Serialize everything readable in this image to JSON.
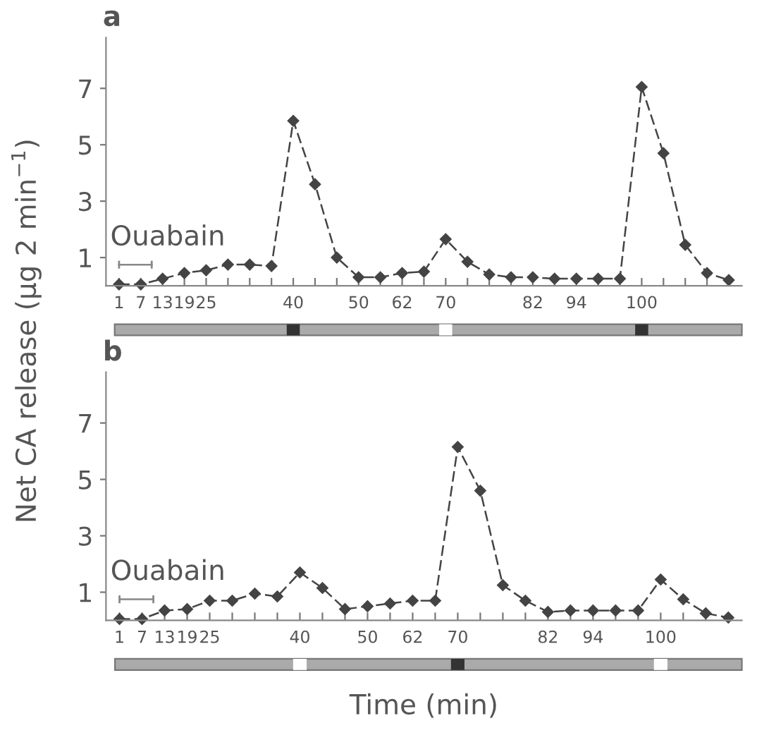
{
  "chart_data": [
    {
      "type": "line",
      "title": "a",
      "ylabel": "Net CA release (μg 2 min$^{−1}$)",
      "annotations": [
        "Ouabain"
      ],
      "categories": [
        "1",
        "7",
        "13",
        "19",
        "25",
        null,
        null,
        null,
        "40",
        null,
        null,
        "50",
        null,
        "62",
        null,
        "70",
        null,
        null,
        null,
        "82",
        null,
        "94",
        null,
        null,
        "100",
        null,
        null,
        null,
        null
      ],
      "series": [
        {
          "color": "#444444",
          "values": [
            0.05,
            0.05,
            0.25,
            0.45,
            0.55,
            0.75,
            0.75,
            0.7,
            5.85,
            3.6,
            1.0,
            0.3,
            0.3,
            0.45,
            0.5,
            1.65,
            0.85,
            0.4,
            0.3,
            0.3,
            0.25,
            0.25,
            0.25,
            0.25,
            7.05,
            4.7,
            1.45,
            0.45,
            0.2
          ]
        }
      ],
      "ylim": [
        0,
        8.8
      ],
      "yticks": [
        1,
        3,
        5,
        7
      ],
      "marker": "diamond",
      "line_style": "dashed",
      "grid": false,
      "legend": false
    },
    {
      "type": "line",
      "title": "b",
      "xlabel": "Time (min)",
      "annotations": [
        "Ouabain"
      ],
      "categories": [
        "1",
        "7",
        "13",
        "19",
        "25",
        null,
        null,
        null,
        "40",
        null,
        null,
        "50",
        null,
        "62",
        null,
        "70",
        null,
        null,
        null,
        "82",
        null,
        "94",
        null,
        null,
        "100",
        null,
        null,
        null
      ],
      "series": [
        {
          "color": "#444444",
          "values": [
            0.05,
            0.05,
            0.35,
            0.4,
            0.7,
            0.7,
            0.95,
            0.85,
            1.7,
            1.15,
            0.4,
            0.5,
            0.6,
            0.7,
            0.7,
            6.15,
            4.6,
            1.25,
            0.7,
            0.3,
            0.35,
            0.35,
            0.35,
            0.35,
            1.45,
            0.75,
            0.25,
            0.1
          ]
        }
      ],
      "ylim": [
        0,
        8.8
      ],
      "yticks": [
        1,
        3,
        5,
        7
      ],
      "marker": "diamond",
      "line_style": "dashed",
      "grid": false,
      "legend": false
    }
  ]
}
